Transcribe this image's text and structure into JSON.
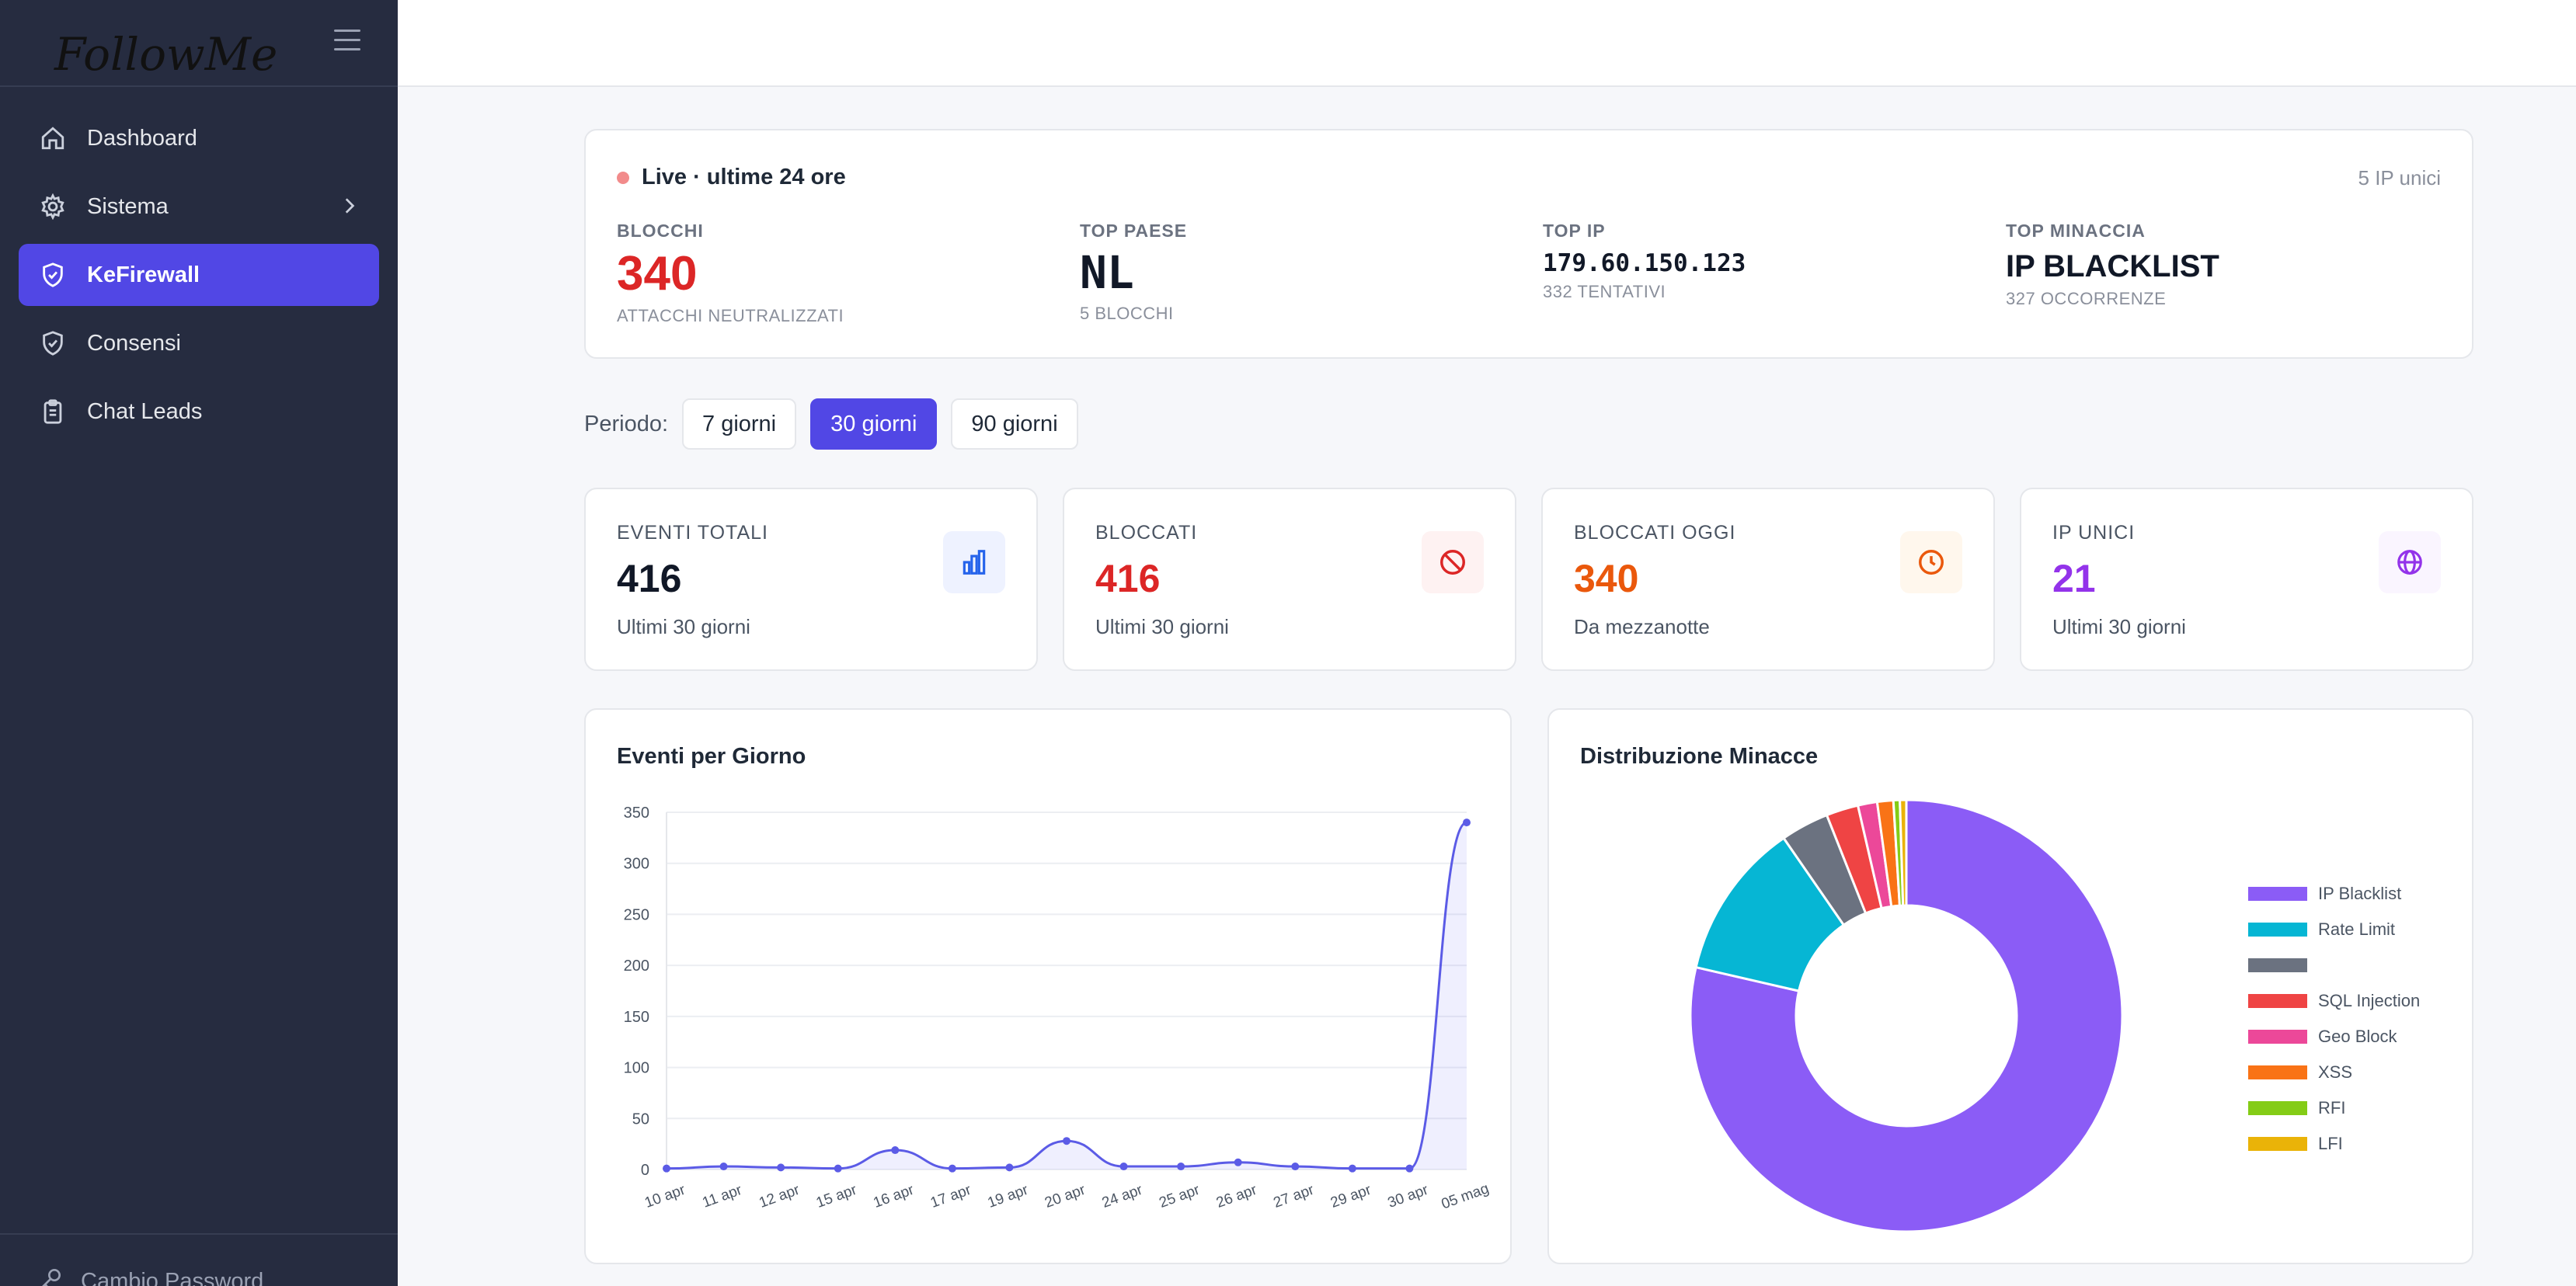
{
  "app": {
    "logo_text": "FollowMe"
  },
  "sidebar": {
    "items": [
      {
        "label": "Dashboard",
        "icon": "home-icon"
      },
      {
        "label": "Sistema",
        "icon": "gear-icon"
      },
      {
        "label": "KeFirewall",
        "icon": "shield-icon"
      },
      {
        "label": "Consensi",
        "icon": "shield-icon"
      },
      {
        "label": "Chat Leads",
        "icon": "clipboard-icon"
      }
    ],
    "footer_label": "Cambio Password"
  },
  "live": {
    "title": "Live · ultime 24 ore",
    "unique_ips": "5 IP unici",
    "stats": [
      {
        "label": "BLOCCHI",
        "value": "340",
        "sub": "ATTACCHI NEUTRALIZZATI",
        "color": "#dc2626"
      },
      {
        "label": "TOP PAESE",
        "value": "NL",
        "sub": "5 BLOCCHI",
        "color": "#111827"
      },
      {
        "label": "TOP IP",
        "value": "179.60.150.123",
        "sub": "332 TENTATIVI",
        "color": "#111827"
      },
      {
        "label": "TOP MINACCIA",
        "value": "IP BLACKLIST",
        "sub": "327 OCCORRENZE",
        "color": "#111827"
      }
    ]
  },
  "period": {
    "label": "Periodo:",
    "options": [
      "7 giorni",
      "30 giorni",
      "90 giorni"
    ],
    "selected": "30 giorni"
  },
  "stat_cards": [
    {
      "label": "EVENTI TOTALI",
      "value": "416",
      "sub": "Ultimi 30 giorni",
      "color": "#111827",
      "icon": "bar-chart-icon",
      "icon_bg": "#eef2ff",
      "icon_color": "#2563eb"
    },
    {
      "label": "BLOCCATI",
      "value": "416",
      "sub": "Ultimi 30 giorni",
      "color": "#dc2626",
      "icon": "ban-icon",
      "icon_bg": "#fef2f2",
      "icon_color": "#dc2626"
    },
    {
      "label": "BLOCCATI OGGI",
      "value": "340",
      "sub": "Da mezzanotte",
      "color": "#ea580c",
      "icon": "clock-icon",
      "icon_bg": "#fff7ed",
      "icon_color": "#ea580c"
    },
    {
      "label": "IP UNICI",
      "value": "21",
      "sub": "Ultimi 30 giorni",
      "color": "#9333ea",
      "icon": "globe-icon",
      "icon_bg": "#faf5ff",
      "icon_color": "#9333ea"
    }
  ],
  "charts": {
    "line_title": "Eventi per Giorno",
    "pie_title": "Distribuzione Minacce"
  },
  "chart_data": [
    {
      "type": "line",
      "title": "Eventi per Giorno",
      "categories": [
        "10 apr",
        "11 apr",
        "12 apr",
        "15 apr",
        "16 apr",
        "17 apr",
        "19 apr",
        "20 apr",
        "24 apr",
        "25 apr",
        "26 apr",
        "27 apr",
        "29 apr",
        "30 apr",
        "05 mag"
      ],
      "values": [
        1,
        3,
        2,
        1,
        19,
        1,
        2,
        28,
        3,
        3,
        7,
        3,
        1,
        1,
        340
      ],
      "ylim": [
        0,
        350
      ],
      "yticks": [
        0,
        50,
        100,
        150,
        200,
        250,
        300,
        350
      ],
      "color": "#5b5be6",
      "fill": "rgba(99,102,241,0.10)",
      "grid": true
    },
    {
      "type": "pie",
      "title": "Distribuzione Minacce",
      "donut": true,
      "legend_position": "right",
      "slices": [
        {
          "name": "IP Blacklist",
          "value": 327,
          "color": "#8b5cf6"
        },
        {
          "name": "Rate Limit",
          "value": 49,
          "color": "#06b6d4"
        },
        {
          "name": "",
          "value": 15,
          "color": "#6b7280"
        },
        {
          "name": "SQL Injection",
          "value": 10,
          "color": "#ef4444"
        },
        {
          "name": "Geo Block",
          "value": 6,
          "color": "#ec4899"
        },
        {
          "name": "XSS",
          "value": 5,
          "color": "#f97316"
        },
        {
          "name": "RFI",
          "value": 2,
          "color": "#84cc16"
        },
        {
          "name": "LFI",
          "value": 2,
          "color": "#eab308"
        }
      ]
    }
  ]
}
